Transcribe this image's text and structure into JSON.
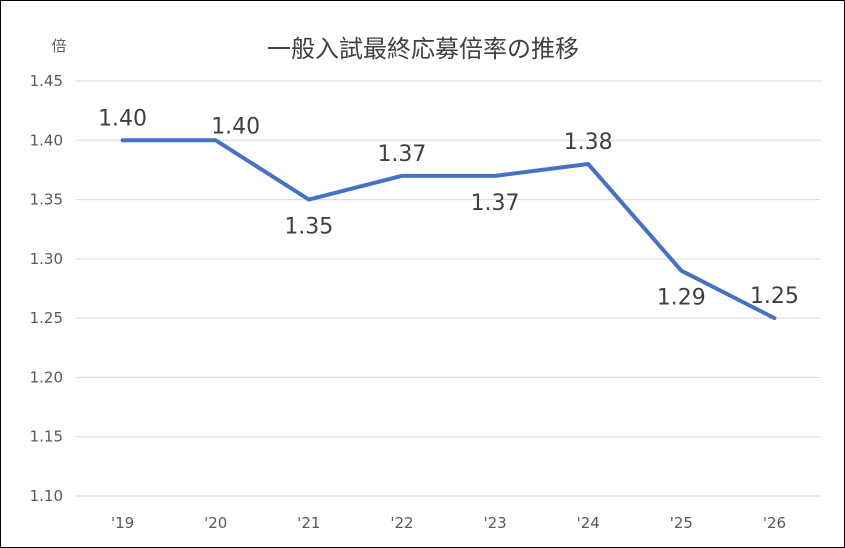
{
  "chart_data": {
    "type": "line",
    "title": "一般入試最終応募倍率の推移",
    "ylabel": "倍",
    "xlabel": "",
    "categories": [
      "'19",
      "'20",
      "'21",
      "'22",
      "'23",
      "'24",
      "'25",
      "'26"
    ],
    "series": [
      {
        "values": [
          1.4,
          1.4,
          1.35,
          1.37,
          1.37,
          1.38,
          1.29,
          1.25
        ],
        "labels": [
          "1.40",
          "1.40",
          "1.35",
          "1.37",
          "1.37",
          "1.38",
          "1.29",
          "1.25"
        ],
        "label_positions": [
          "above",
          "above",
          "below",
          "above",
          "below",
          "above",
          "below",
          "above"
        ]
      }
    ],
    "ylim": [
      1.1,
      1.45
    ],
    "yticks": [
      "1.45",
      "1.40",
      "1.35",
      "1.30",
      "1.25",
      "1.20",
      "1.15",
      "1.10"
    ],
    "grid": true,
    "legend": "none",
    "colors": {
      "line": "#4472C4",
      "grid": "#D9D9D9",
      "text": "#595959",
      "label": "#404040"
    }
  }
}
